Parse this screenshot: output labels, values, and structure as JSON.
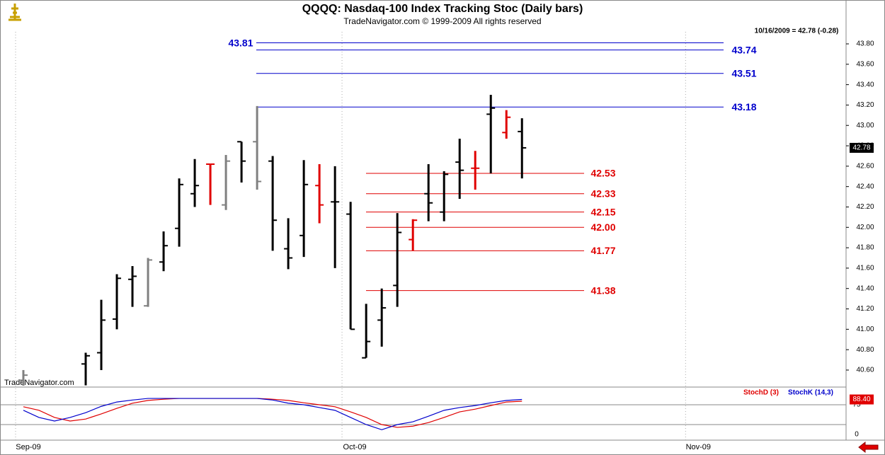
{
  "chart_data": {
    "type": "ohlc",
    "title": "QQQQ:  Nasdaq-100 Index Tracking Stoc  (Daily bars)",
    "subtitle": "TradeNavigator.com © 1999-2009 All rights reserved",
    "status": "10/16/2009 = 42.78 (-0.28)",
    "watermark": "TradeNavigator.com",
    "xlim": [
      -1.5,
      52.8
    ],
    "xticks": [
      {
        "value": -0.5,
        "label": "Sep-09"
      },
      {
        "value": 20.45,
        "label": "Oct-09"
      },
      {
        "value": 42.5,
        "label": "Nov-09"
      }
    ],
    "ylim": [
      40.447,
      43.918
    ],
    "yticks": [
      {
        "value": 40.6,
        "label": "40.60"
      },
      {
        "value": 40.8,
        "label": "40.80"
      },
      {
        "value": 41,
        "label": "41.00"
      },
      {
        "value": 41.2,
        "label": "41.20"
      },
      {
        "value": 41.4,
        "label": "41.40"
      },
      {
        "value": 41.6,
        "label": "41.60"
      },
      {
        "value": 41.8,
        "label": "41.80"
      },
      {
        "value": 42,
        "label": "42.00"
      },
      {
        "value": 42.2,
        "label": "42.20"
      },
      {
        "value": 42.4,
        "label": "42.40"
      },
      {
        "value": 42.6,
        "label": "42.60"
      },
      {
        "value": 42.8,
        "label": "42.80"
      },
      {
        "value": 43,
        "label": "43.00"
      },
      {
        "value": 43.2,
        "label": "43.20"
      },
      {
        "value": 43.4,
        "label": "43.40"
      },
      {
        "value": 43.6,
        "label": "43.60"
      },
      {
        "value": 43.8,
        "label": "43.80"
      }
    ],
    "open": [
      40.5,
      null,
      null,
      null,
      40.66,
      40.77,
      41.1,
      41.49,
      41.23,
      41.66,
      41.99,
      42.33,
      42.62,
      42.22,
      42.84,
      42.84,
      42.65,
      41.79,
      41.92,
      42.41,
      42.25,
      42.13,
      40.72,
      41.09,
      41.43,
      41.88,
      42.33,
      42.15,
      42.64,
      42.58,
      43.11,
      42.93,
      42.94
    ],
    "high": [
      40.6,
      null,
      null,
      null,
      40.77,
      41.29,
      41.54,
      41.62,
      41.7,
      41.96,
      42.48,
      42.67,
      42.62,
      42.71,
      42.84,
      43.19,
      42.7,
      42.09,
      42.66,
      42.62,
      42.6,
      42.25,
      41.25,
      41.4,
      42.14,
      42.08,
      42.62,
      42.55,
      42.87,
      42.75,
      43.3,
      43.15,
      43.07
    ],
    "low": [
      40.4,
      null,
      null,
      null,
      40.45,
      40.6,
      41.0,
      41.22,
      41.22,
      41.57,
      41.81,
      42.2,
      42.22,
      42.17,
      42.44,
      42.37,
      41.77,
      41.59,
      41.71,
      42.04,
      41.6,
      41.0,
      40.72,
      40.83,
      41.22,
      41.77,
      42.06,
      42.06,
      42.28,
      42.37,
      42.53,
      42.87,
      42.48
    ],
    "close": [
      40.55,
      null,
      null,
      null,
      40.74,
      41.09,
      41.5,
      41.52,
      41.68,
      41.82,
      42.42,
      42.41,
      42.62,
      42.65,
      42.65,
      42.45,
      42.07,
      41.7,
      42.42,
      42.22,
      42.25,
      41.0,
      40.88,
      41.21,
      41.95,
      42.07,
      42.24,
      42.52,
      42.56,
      42.58,
      43.17,
      43.08,
      42.78
    ],
    "colors": [
      "#808080",
      "#000000",
      "#000000",
      "#000000",
      "#000000",
      "#000000",
      "#000000",
      "#000000",
      "#808080",
      "#000000",
      "#000000",
      "#000000",
      "#e00000",
      "#808080",
      "#000000",
      "#808080",
      "#000000",
      "#000000",
      "#000000",
      "#e00000",
      "#000000",
      "#000000",
      "#000000",
      "#000000",
      "#000000",
      "#e00000",
      "#000000",
      "#000000",
      "#000000",
      "#e00000",
      "#000000",
      "#e00000",
      "#000000"
    ],
    "last_label": "42.78",
    "levels": [
      {
        "value": 43.81,
        "label": "43.81",
        "color": "#0000cc"
      },
      {
        "value": 43.74,
        "label": "43.74",
        "color": "#0000cc"
      },
      {
        "value": 43.51,
        "label": "43.51",
        "color": "#0000cc"
      },
      {
        "value": 43.18,
        "label": "43.18",
        "color": "#0000cc"
      },
      {
        "value": 42.53,
        "label": "42.53",
        "color": "#e00000"
      },
      {
        "value": 42.33,
        "label": "42.33",
        "color": "#e00000"
      },
      {
        "value": 42.15,
        "label": "42.15",
        "color": "#e00000"
      },
      {
        "value": 42,
        "label": "42.00",
        "color": "#e00000"
      },
      {
        "value": 41.77,
        "label": "41.77",
        "color": "#e00000"
      },
      {
        "value": 41.38,
        "label": "41.38",
        "color": "#e00000"
      }
    ],
    "indicator": {
      "ylim": [
        -14.3,
        117.9
      ],
      "yticks": [
        0,
        75
      ],
      "guides": [
        25,
        75
      ],
      "last_label": "88.40",
      "series": [
        {
          "name": "StochD (3)",
          "color": "#e00000",
          "values": [
            70,
            61,
            43,
            34,
            39,
            52,
            66,
            79,
            86,
            89,
            91,
            91,
            91,
            91,
            91,
            91,
            89,
            86,
            80,
            75,
            70,
            57,
            43,
            25,
            18,
            21,
            30,
            43,
            57,
            64,
            73,
            82,
            84
          ]
        },
        {
          "name": "StochK (14,3)",
          "color": "#0000cc",
          "values": [
            61,
            43,
            34,
            43,
            55,
            71,
            82,
            87,
            91,
            91,
            91,
            91,
            91,
            91,
            91,
            91,
            87,
            79,
            75,
            68,
            61,
            43,
            25,
            12,
            25,
            32,
            46,
            61,
            68,
            73,
            80,
            86,
            88.4
          ]
        }
      ]
    }
  }
}
